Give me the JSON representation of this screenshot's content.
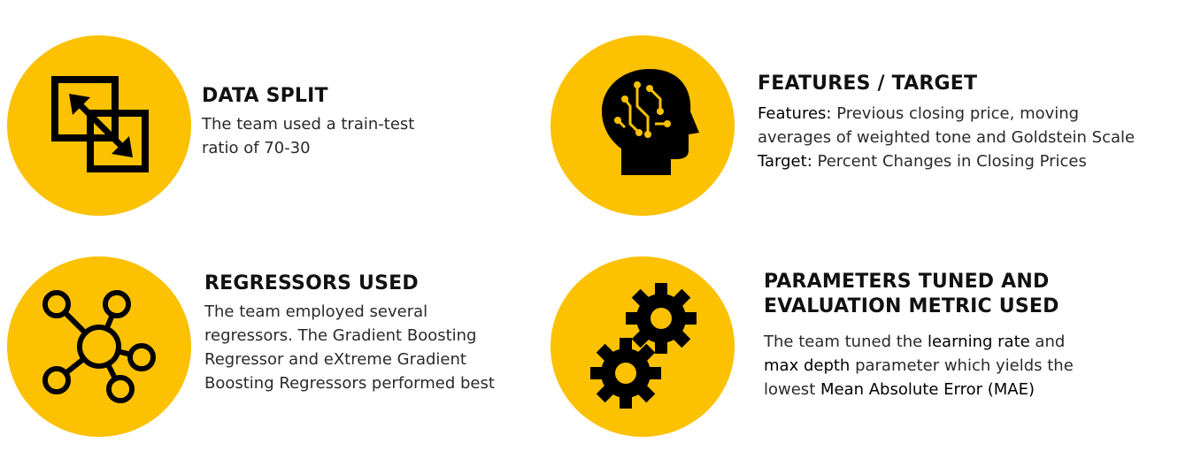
{
  "colors": {
    "circle": "#FCC100",
    "icon": "#000000",
    "text": "#2a2a2a"
  },
  "data_split": {
    "icon": "resize-arrows-icon",
    "title": "DATA SPLIT",
    "line1": "The team used a train-test",
    "line2": "ratio of 70-30"
  },
  "features": {
    "icon": "ai-head-icon",
    "title": "FEATURES / TARGET",
    "features_label": "Features:",
    "features_line1": " Previous closing price, moving",
    "features_line2": "averages of weighted tone and Goldstein Scale",
    "target_label": "Target:",
    "target_text": " Percent Changes in Closing Prices"
  },
  "regressors": {
    "icon": "network-icon",
    "title": "REGRESSORS USED",
    "line1": "The team employed several",
    "line2": "regressors. The Gradient Boosting",
    "line3": "Regressor and eXtreme Gradient",
    "line4": "Boosting Regressors performed best"
  },
  "parameters": {
    "icon": "gears-icon",
    "title_line1": "PARAMETERS TUNED AND",
    "title_line2": "EVALUATION METRIC USED",
    "t1": "The team tuned the ",
    "t1_bold": "learning rate",
    "t1_end": " and",
    "t2_bold": "max depth",
    "t2_end": " parameter which yields the",
    "t3": "lowest ",
    "t3_bold": "Mean Absolute Error (MAE)"
  }
}
